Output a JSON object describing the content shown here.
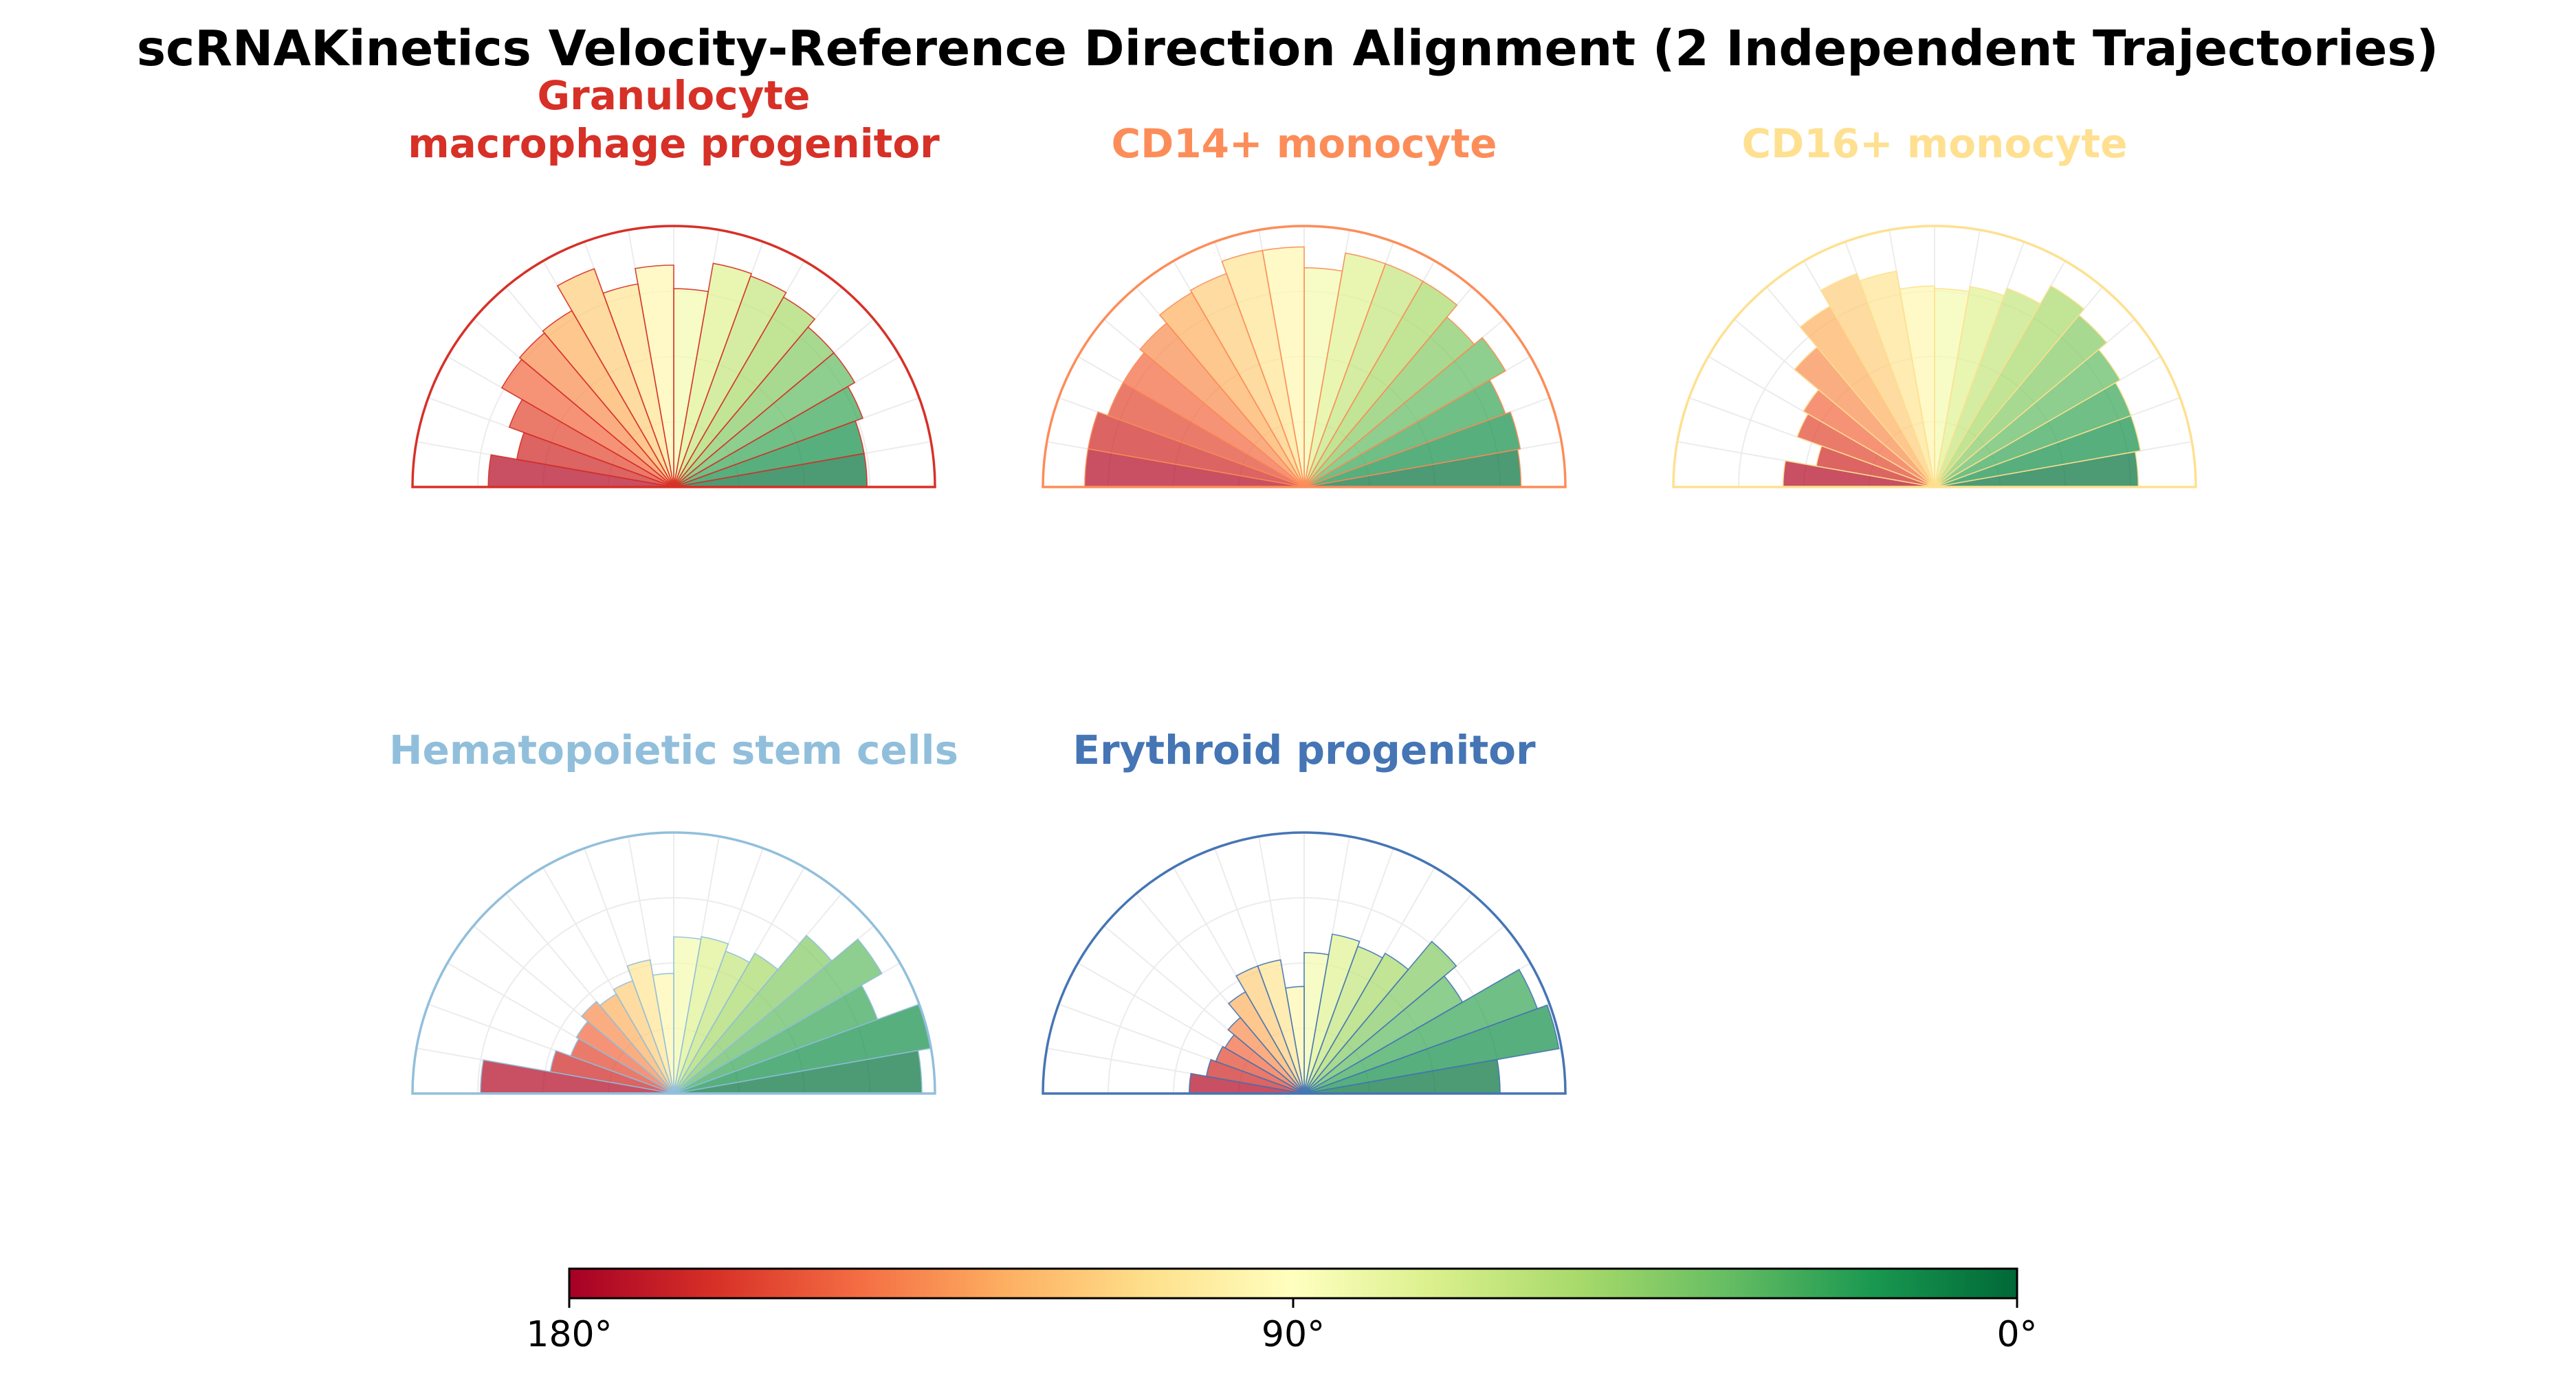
{
  "chart_data": {
    "type": "polar-bar (half rose)",
    "title": "scRNAKinetics Velocity-Reference Direction Alignment (2 Independent Trajectories)",
    "angle_unit": "degrees",
    "angle_range": [
      0,
      180
    ],
    "bin_width_deg": 10,
    "bin_centers_deg": [
      5,
      15,
      25,
      35,
      45,
      55,
      65,
      75,
      85,
      95,
      105,
      115,
      125,
      135,
      145,
      155,
      165,
      175
    ],
    "radial_max": 1.0,
    "panels": [
      {
        "name": "Granulocyte\nmacrophage progenitor",
        "title_lines": [
          "Granulocyte",
          "macrophage progenitor"
        ],
        "title_color": "#d73027",
        "values": [
          0.74,
          0.74,
          0.77,
          0.8,
          0.8,
          0.84,
          0.86,
          0.87,
          0.76,
          0.85,
          0.79,
          0.89,
          0.78,
          0.77,
          0.76,
          0.67,
          0.61,
          0.71
        ]
      },
      {
        "name": "CD14+ monocyte",
        "title_lines": [
          "CD14+ monocyte"
        ],
        "title_color": "#fc8d59",
        "values": [
          0.83,
          0.84,
          0.82,
          0.89,
          0.85,
          0.91,
          0.91,
          0.91,
          0.84,
          0.92,
          0.92,
          0.87,
          0.86,
          0.82,
          0.8,
          0.8,
          0.84,
          0.84
        ]
      },
      {
        "name": "CD16+ monocyte",
        "title_lines": [
          "CD16+ monocyte"
        ],
        "title_color": "#fee090",
        "values": [
          0.78,
          0.8,
          0.8,
          0.82,
          0.86,
          0.89,
          0.81,
          0.78,
          0.76,
          0.77,
          0.84,
          0.87,
          0.8,
          0.7,
          0.58,
          0.56,
          0.46,
          0.58
        ]
      },
      {
        "name": "Hematopoietic stem cells",
        "title_lines": [
          "Hematopoietic stem cells"
        ],
        "title_color": "#91bfdb",
        "values": [
          0.95,
          1.0,
          0.83,
          0.92,
          0.79,
          0.62,
          0.58,
          0.61,
          0.6,
          0.46,
          0.52,
          0.46,
          0.44,
          0.46,
          0.43,
          0.42,
          0.48,
          0.74
        ]
      },
      {
        "name": "Erythroid progenitor",
        "title_lines": [
          "Erythroid progenitor"
        ],
        "title_color": "#4575b4",
        "values": [
          0.75,
          0.99,
          0.95,
          0.7,
          0.76,
          0.62,
          0.6,
          0.62,
          0.54,
          0.41,
          0.52,
          0.52,
          0.45,
          0.38,
          0.35,
          0.36,
          0.38,
          0.44
        ]
      }
    ],
    "colorbar": {
      "colormap": "RdYlGn",
      "tick_labels": [
        "180°",
        "90°",
        "0°"
      ],
      "tick_values_deg": [
        180,
        90,
        0
      ],
      "colors": [
        "#a50026",
        "#d73027",
        "#f46d43",
        "#fdae61",
        "#fee08b",
        "#ffffbf",
        "#d9ef8b",
        "#a6d96a",
        "#66bd63",
        "#1a9850",
        "#006837"
      ]
    }
  }
}
